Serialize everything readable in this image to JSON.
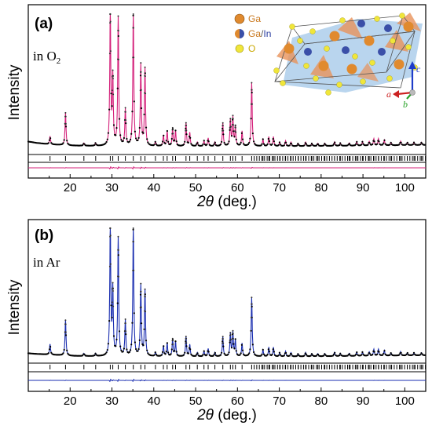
{
  "chart_data": [
    {
      "type": "line",
      "panel_label": "(a)",
      "condition": "in O",
      "condition_sub": "2",
      "xlabel_italic": "2θ",
      "xlabel_rest": " (deg.)",
      "ylabel": "Intensity",
      "xlim": [
        10,
        105
      ],
      "xticks": [
        20,
        30,
        40,
        50,
        60,
        70,
        80,
        90,
        100
      ],
      "y_ticks_shown": false,
      "background": [
        [
          10,
          0.055
        ],
        [
          12,
          0.045
        ],
        [
          15,
          0.035
        ],
        [
          20,
          0.025
        ],
        [
          30,
          0.02
        ],
        [
          40,
          0.02
        ],
        [
          50,
          0.02
        ],
        [
          60,
          0.02
        ],
        [
          70,
          0.02
        ],
        [
          80,
          0.022
        ],
        [
          90,
          0.025
        ],
        [
          105,
          0.03
        ]
      ],
      "peaks": [
        [
          15.2,
          0.06
        ],
        [
          18.9,
          0.24
        ],
        [
          23.3,
          0.02
        ],
        [
          26.1,
          0.02
        ],
        [
          29.6,
          1.0
        ],
        [
          30.2,
          0.5
        ],
        [
          31.5,
          0.95
        ],
        [
          33.2,
          0.27
        ],
        [
          35.1,
          0.98
        ],
        [
          36.9,
          0.6
        ],
        [
          37.9,
          0.57
        ],
        [
          40.4,
          0.03
        ],
        [
          42.3,
          0.08
        ],
        [
          43.2,
          0.11
        ],
        [
          44.5,
          0.13
        ],
        [
          45.2,
          0.11
        ],
        [
          47.7,
          0.17
        ],
        [
          48.6,
          0.1
        ],
        [
          50.4,
          0.03
        ],
        [
          52.0,
          0.04
        ],
        [
          53.0,
          0.06
        ],
        [
          54.6,
          0.03
        ],
        [
          56.5,
          0.17
        ],
        [
          58.3,
          0.19
        ],
        [
          58.9,
          0.21
        ],
        [
          59.5,
          0.14
        ],
        [
          61.1,
          0.11
        ],
        [
          63.4,
          0.47
        ],
        [
          66.1,
          0.05
        ],
        [
          67.5,
          0.07
        ],
        [
          68.6,
          0.07
        ],
        [
          70.1,
          0.03
        ],
        [
          71.5,
          0.04
        ],
        [
          72.8,
          0.03
        ],
        [
          74.5,
          0.02
        ],
        [
          76.3,
          0.03
        ],
        [
          77.8,
          0.02
        ],
        [
          79.2,
          0.02
        ],
        [
          80.9,
          0.02
        ],
        [
          83.2,
          0.03
        ],
        [
          84.6,
          0.02
        ],
        [
          86.7,
          0.02
        ],
        [
          88.5,
          0.03
        ],
        [
          89.9,
          0.03
        ],
        [
          91.5,
          0.03
        ],
        [
          92.6,
          0.05
        ],
        [
          93.7,
          0.05
        ],
        [
          95.1,
          0.04
        ],
        [
          96.7,
          0.02
        ],
        [
          99.0,
          0.03
        ],
        [
          100.6,
          0.02
        ],
        [
          102.2,
          0.02
        ],
        [
          104.0,
          0.02
        ]
      ],
      "series": [
        {
          "name": "observed",
          "style": "black dots",
          "color": "#000000"
        },
        {
          "name": "calculated",
          "style": "line",
          "color": "#d4207a"
        },
        {
          "name": "Bragg positions",
          "style": "tick marks",
          "color": "#000000"
        },
        {
          "name": "difference",
          "style": "line",
          "color": "#d4207a"
        }
      ],
      "color": "#d4207a",
      "inset": {
        "legend": [
          {
            "label": "Ga",
            "color": "#e08a2e",
            "kind": "solid"
          },
          {
            "label": "Ga",
            "label2": "/",
            "label3": "In",
            "color": "#e08a2e",
            "color2": "#3a4fa8",
            "kind": "split"
          },
          {
            "label": "O",
            "color": "#f0e63a",
            "kind": "solid"
          }
        ],
        "axes": [
          {
            "label": "c",
            "color": "#1f3cc9"
          },
          {
            "label": "a",
            "color": "#cc2020"
          },
          {
            "label": "b",
            "color": "#24a024"
          }
        ]
      }
    },
    {
      "type": "line",
      "panel_label": "(b)",
      "condition": "in Ar",
      "xlabel_italic": "2θ",
      "xlabel_rest": " (deg.)",
      "ylabel": "Intensity",
      "xlim": [
        10,
        105
      ],
      "xticks": [
        20,
        30,
        40,
        50,
        60,
        70,
        80,
        90,
        100
      ],
      "y_ticks_shown": false,
      "background": [
        [
          10,
          0.045
        ],
        [
          12,
          0.04
        ],
        [
          15,
          0.035
        ],
        [
          20,
          0.025
        ],
        [
          30,
          0.02
        ],
        [
          40,
          0.02
        ],
        [
          50,
          0.02
        ],
        [
          60,
          0.02
        ],
        [
          70,
          0.02
        ],
        [
          80,
          0.022
        ],
        [
          90,
          0.025
        ],
        [
          105,
          0.03
        ]
      ],
      "peaks": [
        [
          15.2,
          0.08
        ],
        [
          18.9,
          0.27
        ],
        [
          23.3,
          0.02
        ],
        [
          26.1,
          0.02
        ],
        [
          29.6,
          1.0
        ],
        [
          30.2,
          0.5
        ],
        [
          31.5,
          0.9
        ],
        [
          33.2,
          0.27
        ],
        [
          35.1,
          0.98
        ],
        [
          36.9,
          0.54
        ],
        [
          37.9,
          0.5
        ],
        [
          40.4,
          0.03
        ],
        [
          42.3,
          0.08
        ],
        [
          43.2,
          0.1
        ],
        [
          44.5,
          0.13
        ],
        [
          45.2,
          0.11
        ],
        [
          47.7,
          0.15
        ],
        [
          48.6,
          0.09
        ],
        [
          50.4,
          0.03
        ],
        [
          52.0,
          0.04
        ],
        [
          53.0,
          0.06
        ],
        [
          54.6,
          0.03
        ],
        [
          56.5,
          0.15
        ],
        [
          58.3,
          0.17
        ],
        [
          58.9,
          0.18
        ],
        [
          59.5,
          0.12
        ],
        [
          61.1,
          0.1
        ],
        [
          63.4,
          0.45
        ],
        [
          66.1,
          0.05
        ],
        [
          67.5,
          0.07
        ],
        [
          68.6,
          0.07
        ],
        [
          70.1,
          0.03
        ],
        [
          71.5,
          0.04
        ],
        [
          72.8,
          0.03
        ],
        [
          74.5,
          0.02
        ],
        [
          76.3,
          0.03
        ],
        [
          77.8,
          0.02
        ],
        [
          79.2,
          0.02
        ],
        [
          80.9,
          0.02
        ],
        [
          83.2,
          0.03
        ],
        [
          84.6,
          0.02
        ],
        [
          86.7,
          0.02
        ],
        [
          88.5,
          0.03
        ],
        [
          89.9,
          0.03
        ],
        [
          91.5,
          0.03
        ],
        [
          92.6,
          0.05
        ],
        [
          93.7,
          0.05
        ],
        [
          95.1,
          0.04
        ],
        [
          96.7,
          0.02
        ],
        [
          99.0,
          0.03
        ],
        [
          100.6,
          0.02
        ],
        [
          102.2,
          0.02
        ],
        [
          104.0,
          0.02
        ]
      ],
      "series": [
        {
          "name": "observed",
          "style": "black dots",
          "color": "#000000"
        },
        {
          "name": "calculated",
          "style": "line",
          "color": "#1a2eb0"
        },
        {
          "name": "Bragg positions",
          "style": "tick marks",
          "color": "#000000"
        },
        {
          "name": "difference",
          "style": "line",
          "color": "#1a2eb0"
        }
      ],
      "color": "#1a2eb0"
    }
  ]
}
